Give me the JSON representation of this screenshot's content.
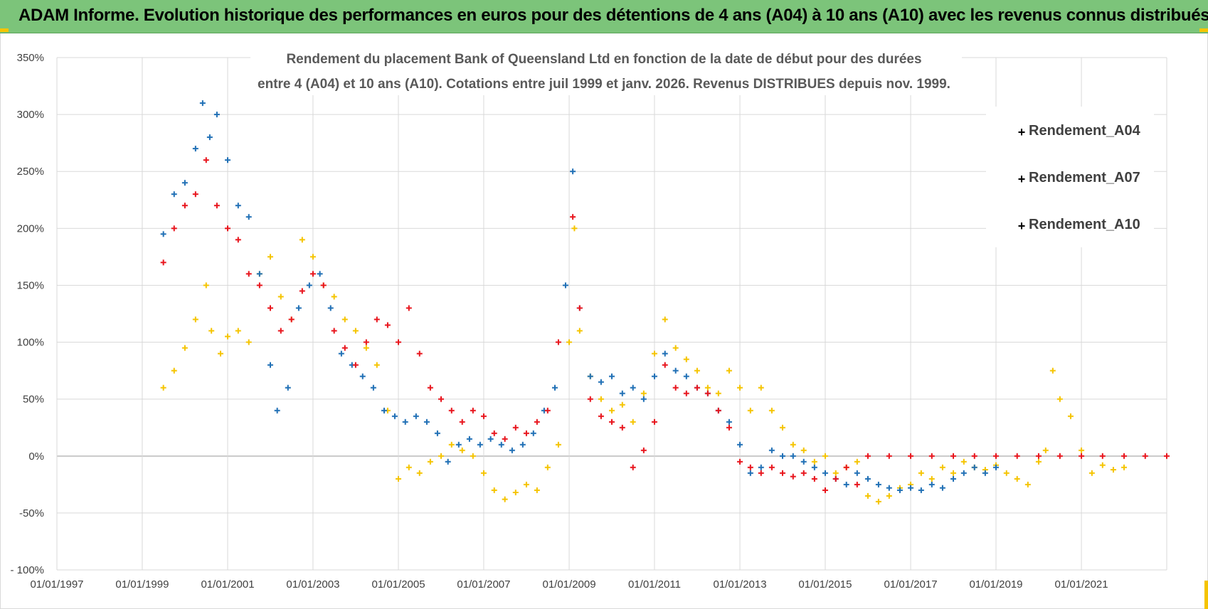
{
  "banner": {
    "title": "ADAM Informe. Evolution historique des performances en euros pour des détentions de 4 ans (A04) à 10 ans (A10) avec les revenus connus distribués"
  },
  "colors": {
    "banner_bg": "#7cc47a",
    "A04": "#f5c400",
    "A07": "#1f6fb5",
    "A10": "#e8141c",
    "grid": "#d9d9d9",
    "zero_line": "#bfbfbf"
  },
  "chart_data": {
    "type": "scatter",
    "title_lines": [
      "Rendement du placement Bank of Queensland Ltd en fonction de la date de début pour des durées",
      "entre 4 (A04) et 10 ans (A10). Cotations entre juil 1999 et janv. 2026. Revenus DISTRIBUES depuis nov. 1999."
    ],
    "xlabel": "",
    "ylabel": "",
    "x_ticks": [
      "01/01/1997",
      "01/01/1999",
      "01/01/2001",
      "01/01/2003",
      "01/01/2005",
      "01/01/2007",
      "01/01/2009",
      "01/01/2011",
      "01/01/2013",
      "01/01/2015",
      "01/01/2017",
      "01/01/2019",
      "01/01/2021"
    ],
    "x_range": [
      "1997-01-01",
      "2023-01-01"
    ],
    "y_ticks": [
      "- 100%",
      "-50%",
      "0%",
      "50%",
      "100%",
      "150%",
      "200%",
      "250%",
      "300%",
      "350%"
    ],
    "ylim": [
      -100,
      350
    ],
    "grid": true,
    "legend_position": "top-right",
    "marker": "+",
    "series": [
      {
        "name": "Rendement_A04",
        "color": "#f5c400",
        "points": [
          [
            "1999-07-01",
            60
          ],
          [
            "1999-10-01",
            75
          ],
          [
            "2000-01-01",
            95
          ],
          [
            "2000-04-01",
            120
          ],
          [
            "2000-07-01",
            150
          ],
          [
            "2000-08-15",
            110
          ],
          [
            "2000-11-01",
            90
          ],
          [
            "2001-01-01",
            105
          ],
          [
            "2001-04-01",
            110
          ],
          [
            "2001-07-01",
            100
          ],
          [
            "2001-10-01",
            160
          ],
          [
            "2002-01-01",
            175
          ],
          [
            "2002-04-01",
            140
          ],
          [
            "2002-07-01",
            120
          ],
          [
            "2002-10-01",
            190
          ],
          [
            "2003-01-01",
            175
          ],
          [
            "2003-04-01",
            150
          ],
          [
            "2003-07-01",
            140
          ],
          [
            "2003-10-01",
            120
          ],
          [
            "2004-01-01",
            110
          ],
          [
            "2004-04-01",
            95
          ],
          [
            "2004-07-01",
            80
          ],
          [
            "2004-10-01",
            40
          ],
          [
            "2005-01-01",
            -20
          ],
          [
            "2005-04-01",
            -10
          ],
          [
            "2005-07-01",
            -15
          ],
          [
            "2005-10-01",
            -5
          ],
          [
            "2006-01-01",
            0
          ],
          [
            "2006-04-01",
            10
          ],
          [
            "2006-07-01",
            5
          ],
          [
            "2006-10-01",
            0
          ],
          [
            "2007-01-01",
            -15
          ],
          [
            "2007-04-01",
            -30
          ],
          [
            "2007-07-01",
            -38
          ],
          [
            "2007-10-01",
            -32
          ],
          [
            "2008-01-01",
            -25
          ],
          [
            "2008-04-01",
            -30
          ],
          [
            "2008-07-01",
            -10
          ],
          [
            "2008-10-01",
            10
          ],
          [
            "2009-01-01",
            100
          ],
          [
            "2009-02-15",
            200
          ],
          [
            "2009-04-01",
            110
          ],
          [
            "2009-07-01",
            70
          ],
          [
            "2009-10-01",
            50
          ],
          [
            "2010-01-01",
            40
          ],
          [
            "2010-04-01",
            45
          ],
          [
            "2010-07-01",
            30
          ],
          [
            "2010-10-01",
            55
          ],
          [
            "2011-01-01",
            90
          ],
          [
            "2011-04-01",
            120
          ],
          [
            "2011-07-01",
            95
          ],
          [
            "2011-10-01",
            85
          ],
          [
            "2012-01-01",
            75
          ],
          [
            "2012-04-01",
            60
          ],
          [
            "2012-07-01",
            55
          ],
          [
            "2012-10-01",
            75
          ],
          [
            "2013-01-01",
            60
          ],
          [
            "2013-04-01",
            40
          ],
          [
            "2013-07-01",
            60
          ],
          [
            "2013-10-01",
            40
          ],
          [
            "2014-01-01",
            25
          ],
          [
            "2014-04-01",
            10
          ],
          [
            "2014-07-01",
            5
          ],
          [
            "2014-10-01",
            -5
          ],
          [
            "2015-01-01",
            0
          ],
          [
            "2015-04-01",
            -15
          ],
          [
            "2015-07-01",
            -10
          ],
          [
            "2015-10-01",
            -5
          ],
          [
            "2016-01-01",
            -35
          ],
          [
            "2016-04-01",
            -40
          ],
          [
            "2016-07-01",
            -35
          ],
          [
            "2016-10-01",
            -28
          ],
          [
            "2017-01-01",
            -25
          ],
          [
            "2017-04-01",
            -15
          ],
          [
            "2017-07-01",
            -20
          ],
          [
            "2017-10-01",
            -10
          ],
          [
            "2018-01-01",
            -15
          ],
          [
            "2018-04-01",
            -5
          ],
          [
            "2018-07-01",
            -10
          ],
          [
            "2018-10-01",
            -12
          ],
          [
            "2019-01-01",
            -8
          ],
          [
            "2019-04-01",
            -15
          ],
          [
            "2019-07-01",
            -20
          ],
          [
            "2019-10-01",
            -25
          ],
          [
            "2020-01-01",
            -5
          ],
          [
            "2020-03-01",
            5
          ],
          [
            "2020-05-01",
            75
          ],
          [
            "2020-07-01",
            50
          ],
          [
            "2020-10-01",
            35
          ],
          [
            "2021-01-01",
            5
          ],
          [
            "2021-04-01",
            -15
          ],
          [
            "2021-07-01",
            -8
          ],
          [
            "2021-10-01",
            -12
          ],
          [
            "2022-01-01",
            -10
          ]
        ]
      },
      {
        "name": "Rendement_A07",
        "color": "#1f6fb5",
        "points": [
          [
            "1999-07-01",
            195
          ],
          [
            "1999-10-01",
            230
          ],
          [
            "2000-01-01",
            240
          ],
          [
            "2000-04-01",
            270
          ],
          [
            "2000-06-01",
            310
          ],
          [
            "2000-08-01",
            280
          ],
          [
            "2000-10-01",
            300
          ],
          [
            "2001-01-01",
            260
          ],
          [
            "2001-04-01",
            220
          ],
          [
            "2001-07-01",
            210
          ],
          [
            "2001-10-01",
            160
          ],
          [
            "2002-01-01",
            80
          ],
          [
            "2002-03-01",
            40
          ],
          [
            "2002-06-01",
            60
          ],
          [
            "2002-09-01",
            130
          ],
          [
            "2002-12-01",
            150
          ],
          [
            "2003-03-01",
            160
          ],
          [
            "2003-06-01",
            130
          ],
          [
            "2003-09-01",
            90
          ],
          [
            "2003-12-01",
            80
          ],
          [
            "2004-03-01",
            70
          ],
          [
            "2004-06-01",
            60
          ],
          [
            "2004-09-01",
            40
          ],
          [
            "2004-12-01",
            35
          ],
          [
            "2005-03-01",
            30
          ],
          [
            "2005-06-01",
            35
          ],
          [
            "2005-09-01",
            30
          ],
          [
            "2005-12-01",
            20
          ],
          [
            "2006-03-01",
            -5
          ],
          [
            "2006-06-01",
            10
          ],
          [
            "2006-09-01",
            15
          ],
          [
            "2006-12-01",
            10
          ],
          [
            "2007-03-01",
            15
          ],
          [
            "2007-06-01",
            10
          ],
          [
            "2007-09-01",
            5
          ],
          [
            "2007-12-01",
            10
          ],
          [
            "2008-03-01",
            20
          ],
          [
            "2008-06-01",
            40
          ],
          [
            "2008-09-01",
            60
          ],
          [
            "2008-12-01",
            150
          ],
          [
            "2009-02-01",
            250
          ],
          [
            "2009-04-01",
            130
          ],
          [
            "2009-07-01",
            70
          ],
          [
            "2009-10-01",
            65
          ],
          [
            "2010-01-01",
            70
          ],
          [
            "2010-04-01",
            55
          ],
          [
            "2010-07-01",
            60
          ],
          [
            "2010-10-01",
            50
          ],
          [
            "2011-01-01",
            70
          ],
          [
            "2011-04-01",
            90
          ],
          [
            "2011-07-01",
            75
          ],
          [
            "2011-10-01",
            70
          ],
          [
            "2012-01-01",
            60
          ],
          [
            "2012-04-01",
            55
          ],
          [
            "2012-07-01",
            40
          ],
          [
            "2012-10-01",
            30
          ],
          [
            "2013-01-01",
            10
          ],
          [
            "2013-04-01",
            -15
          ],
          [
            "2013-07-01",
            -10
          ],
          [
            "2013-10-01",
            5
          ],
          [
            "2014-01-01",
            0
          ],
          [
            "2014-04-01",
            0
          ],
          [
            "2014-07-01",
            -5
          ],
          [
            "2014-10-01",
            -10
          ],
          [
            "2015-01-01",
            -15
          ],
          [
            "2015-04-01",
            -20
          ],
          [
            "2015-07-01",
            -25
          ],
          [
            "2015-10-01",
            -15
          ],
          [
            "2016-01-01",
            -20
          ],
          [
            "2016-04-01",
            -25
          ],
          [
            "2016-07-01",
            -28
          ],
          [
            "2016-10-01",
            -30
          ],
          [
            "2017-01-01",
            -28
          ],
          [
            "2017-04-01",
            -30
          ],
          [
            "2017-07-01",
            -25
          ],
          [
            "2017-10-01",
            -28
          ],
          [
            "2018-01-01",
            -20
          ],
          [
            "2018-04-01",
            -15
          ],
          [
            "2018-07-01",
            -10
          ],
          [
            "2018-10-01",
            -15
          ],
          [
            "2019-01-01",
            -10
          ]
        ]
      },
      {
        "name": "Rendement_A10",
        "color": "#e8141c",
        "points": [
          [
            "1999-07-01",
            170
          ],
          [
            "1999-10-01",
            200
          ],
          [
            "2000-01-01",
            220
          ],
          [
            "2000-04-01",
            230
          ],
          [
            "2000-07-01",
            260
          ],
          [
            "2000-10-01",
            220
          ],
          [
            "2001-01-01",
            200
          ],
          [
            "2001-04-01",
            190
          ],
          [
            "2001-07-01",
            160
          ],
          [
            "2001-10-01",
            150
          ],
          [
            "2002-01-01",
            130
          ],
          [
            "2002-04-01",
            110
          ],
          [
            "2002-07-01",
            120
          ],
          [
            "2002-10-01",
            145
          ],
          [
            "2003-01-01",
            160
          ],
          [
            "2003-04-01",
            150
          ],
          [
            "2003-07-01",
            110
          ],
          [
            "2003-10-01",
            95
          ],
          [
            "2004-01-01",
            80
          ],
          [
            "2004-04-01",
            100
          ],
          [
            "2004-07-01",
            120
          ],
          [
            "2004-10-01",
            115
          ],
          [
            "2005-01-01",
            100
          ],
          [
            "2005-04-01",
            130
          ],
          [
            "2005-07-01",
            90
          ],
          [
            "2005-10-01",
            60
          ],
          [
            "2006-01-01",
            50
          ],
          [
            "2006-04-01",
            40
          ],
          [
            "2006-07-01",
            30
          ],
          [
            "2006-10-01",
            40
          ],
          [
            "2007-01-01",
            35
          ],
          [
            "2007-04-01",
            20
          ],
          [
            "2007-07-01",
            15
          ],
          [
            "2007-10-01",
            25
          ],
          [
            "2008-01-01",
            20
          ],
          [
            "2008-04-01",
            30
          ],
          [
            "2008-07-01",
            40
          ],
          [
            "2008-10-01",
            100
          ],
          [
            "2009-02-01",
            210
          ],
          [
            "2009-04-01",
            130
          ],
          [
            "2009-07-01",
            50
          ],
          [
            "2009-10-01",
            35
          ],
          [
            "2010-01-01",
            30
          ],
          [
            "2010-04-01",
            25
          ],
          [
            "2010-07-01",
            -10
          ],
          [
            "2010-10-01",
            5
          ],
          [
            "2011-01-01",
            30
          ],
          [
            "2011-04-01",
            80
          ],
          [
            "2011-07-01",
            60
          ],
          [
            "2011-10-01",
            55
          ],
          [
            "2012-01-01",
            60
          ],
          [
            "2012-04-01",
            55
          ],
          [
            "2012-07-01",
            40
          ],
          [
            "2012-10-01",
            25
          ],
          [
            "2013-01-01",
            -5
          ],
          [
            "2013-04-01",
            -10
          ],
          [
            "2013-07-01",
            -15
          ],
          [
            "2013-10-01",
            -10
          ],
          [
            "2014-01-01",
            -15
          ],
          [
            "2014-04-01",
            -18
          ],
          [
            "2014-07-01",
            -15
          ],
          [
            "2014-10-01",
            -20
          ],
          [
            "2015-01-01",
            -30
          ],
          [
            "2015-04-01",
            -20
          ],
          [
            "2015-07-01",
            -10
          ],
          [
            "2015-10-01",
            -25
          ],
          [
            "2016-01-01",
            0
          ],
          [
            "2016-07-01",
            0
          ],
          [
            "2017-01-01",
            0
          ],
          [
            "2017-07-01",
            0
          ],
          [
            "2018-01-01",
            0
          ],
          [
            "2018-07-01",
            0
          ],
          [
            "2019-01-01",
            0
          ],
          [
            "2019-07-01",
            0
          ],
          [
            "2020-01-01",
            0
          ],
          [
            "2020-07-01",
            0
          ],
          [
            "2021-01-01",
            0
          ],
          [
            "2021-07-01",
            0
          ],
          [
            "2022-01-01",
            0
          ],
          [
            "2022-07-01",
            0
          ],
          [
            "2023-01-01",
            0
          ]
        ]
      }
    ]
  }
}
